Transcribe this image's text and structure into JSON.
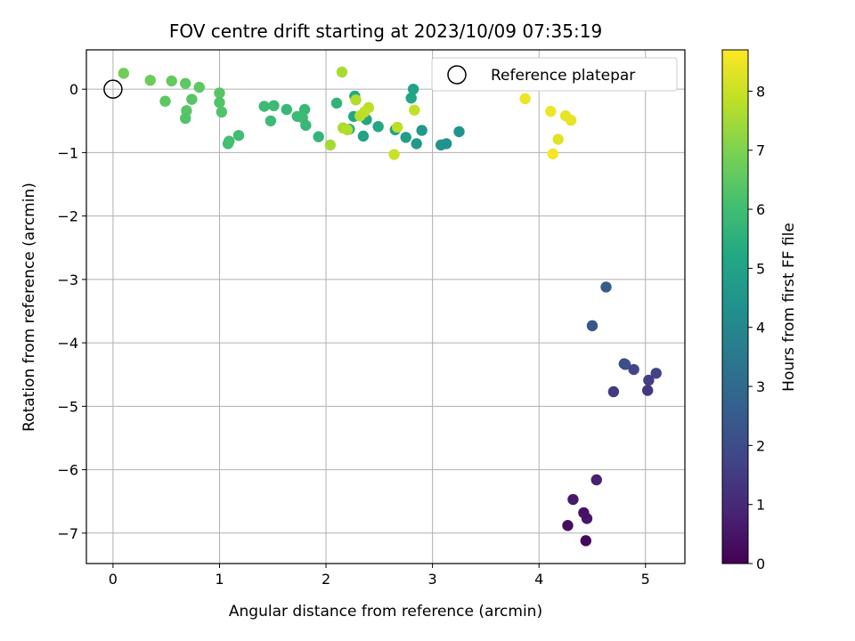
{
  "chart_data": {
    "type": "scatter",
    "title": "FOV centre drift starting at 2023/10/09 07:35:19",
    "xlabel": "Angular distance from reference (arcmin)",
    "ylabel": "Rotation from reference (arcmin)",
    "xlim": [
      -0.25,
      5.37
    ],
    "ylim": [
      -7.48,
      0.62
    ],
    "xticks": [
      0,
      1,
      2,
      3,
      4,
      5
    ],
    "yticks": [
      0,
      -1,
      -2,
      -3,
      -4,
      -5,
      -6,
      -7
    ],
    "xtick_labels": [
      "0",
      "1",
      "2",
      "3",
      "4",
      "5"
    ],
    "ytick_labels": [
      "0",
      "−1",
      "−2",
      "−3",
      "−4",
      "−5",
      "−6",
      "−7"
    ],
    "grid": true,
    "legend": {
      "placement": "upper-right",
      "entries": [
        "Reference platepar"
      ]
    },
    "reference_point": {
      "name": "Reference platepar",
      "x": 0,
      "y": 0
    },
    "colorbar": {
      "label": "Hours from first FF file",
      "colormap": "viridis",
      "range": [
        0,
        8.7
      ],
      "ticks": [
        0,
        1,
        2,
        3,
        4,
        5,
        6,
        7,
        8
      ],
      "tick_labels": [
        "0",
        "1",
        "2",
        "3",
        "4",
        "5",
        "6",
        "7",
        "8"
      ]
    },
    "points": [
      {
        "x": 4.44,
        "y": -7.12,
        "c": 0.2
      },
      {
        "x": 4.27,
        "y": -6.88,
        "c": 0.3
      },
      {
        "x": 4.45,
        "y": -6.77,
        "c": 0.5
      },
      {
        "x": 4.42,
        "y": -6.68,
        "c": 0.4
      },
      {
        "x": 4.32,
        "y": -6.47,
        "c": 0.6
      },
      {
        "x": 4.54,
        "y": -6.16,
        "c": 0.8
      },
      {
        "x": 4.7,
        "y": -4.77,
        "c": 1.5
      },
      {
        "x": 5.02,
        "y": -4.75,
        "c": 1.4
      },
      {
        "x": 5.03,
        "y": -4.59,
        "c": 1.6
      },
      {
        "x": 5.1,
        "y": -4.48,
        "c": 1.7
      },
      {
        "x": 4.89,
        "y": -4.42,
        "c": 1.8
      },
      {
        "x": 4.81,
        "y": -4.34,
        "c": 2.0
      },
      {
        "x": 4.8,
        "y": -4.33,
        "c": 2.1
      },
      {
        "x": 4.5,
        "y": -3.73,
        "c": 2.3
      },
      {
        "x": 4.63,
        "y": -3.12,
        "c": 2.5
      },
      {
        "x": 0.1,
        "y": 0.25,
        "c": 6.8
      },
      {
        "x": 0.35,
        "y": 0.14,
        "c": 6.7
      },
      {
        "x": 0.55,
        "y": 0.13,
        "c": 6.6
      },
      {
        "x": 0.68,
        "y": 0.09,
        "c": 6.5
      },
      {
        "x": 0.81,
        "y": 0.03,
        "c": 6.5
      },
      {
        "x": 1.0,
        "y": -0.06,
        "c": 6.4
      },
      {
        "x": 0.49,
        "y": -0.19,
        "c": 6.5
      },
      {
        "x": 0.74,
        "y": -0.16,
        "c": 6.4
      },
      {
        "x": 1.0,
        "y": -0.21,
        "c": 6.3
      },
      {
        "x": 0.69,
        "y": -0.34,
        "c": 6.4
      },
      {
        "x": 1.02,
        "y": -0.36,
        "c": 6.3
      },
      {
        "x": 0.68,
        "y": -0.46,
        "c": 6.3
      },
      {
        "x": 1.18,
        "y": -0.73,
        "c": 6.0
      },
      {
        "x": 1.09,
        "y": -0.82,
        "c": 6.1
      },
      {
        "x": 1.08,
        "y": -0.86,
        "c": 6.1
      },
      {
        "x": 1.42,
        "y": -0.27,
        "c": 5.9
      },
      {
        "x": 1.51,
        "y": -0.26,
        "c": 5.9
      },
      {
        "x": 1.63,
        "y": -0.32,
        "c": 5.8
      },
      {
        "x": 1.8,
        "y": -0.32,
        "c": 5.8
      },
      {
        "x": 1.73,
        "y": -0.43,
        "c": 5.9
      },
      {
        "x": 1.78,
        "y": -0.45,
        "c": 5.9
      },
      {
        "x": 1.48,
        "y": -0.5,
        "c": 5.9
      },
      {
        "x": 1.81,
        "y": -0.57,
        "c": 5.8
      },
      {
        "x": 1.93,
        "y": -0.75,
        "c": 5.7
      },
      {
        "x": 2.1,
        "y": -0.22,
        "c": 5.6
      },
      {
        "x": 2.27,
        "y": -0.11,
        "c": 5.3
      },
      {
        "x": 2.26,
        "y": -0.43,
        "c": 5.2
      },
      {
        "x": 2.38,
        "y": -0.48,
        "c": 5.1
      },
      {
        "x": 2.22,
        "y": -0.63,
        "c": 5.5
      },
      {
        "x": 2.35,
        "y": -0.74,
        "c": 5.0
      },
      {
        "x": 2.49,
        "y": -0.59,
        "c": 5.2
      },
      {
        "x": 2.82,
        "y": 0.0,
        "c": 5.0
      },
      {
        "x": 2.8,
        "y": -0.14,
        "c": 5.1
      },
      {
        "x": 2.65,
        "y": -0.64,
        "c": 4.9
      },
      {
        "x": 2.75,
        "y": -0.76,
        "c": 4.8
      },
      {
        "x": 2.9,
        "y": -0.65,
        "c": 4.7
      },
      {
        "x": 2.85,
        "y": -0.86,
        "c": 4.6
      },
      {
        "x": 3.08,
        "y": -0.88,
        "c": 4.5
      },
      {
        "x": 3.13,
        "y": -0.86,
        "c": 4.4
      },
      {
        "x": 3.25,
        "y": -0.67,
        "c": 4.5
      },
      {
        "x": 2.15,
        "y": 0.27,
        "c": 7.6
      },
      {
        "x": 2.04,
        "y": -0.88,
        "c": 7.5
      },
      {
        "x": 2.28,
        "y": -0.17,
        "c": 7.7
      },
      {
        "x": 2.4,
        "y": -0.29,
        "c": 7.8
      },
      {
        "x": 2.36,
        "y": -0.36,
        "c": 7.9
      },
      {
        "x": 2.32,
        "y": -0.42,
        "c": 7.8
      },
      {
        "x": 2.16,
        "y": -0.61,
        "c": 7.6
      },
      {
        "x": 2.2,
        "y": -0.64,
        "c": 7.7
      },
      {
        "x": 2.83,
        "y": -0.33,
        "c": 7.9
      },
      {
        "x": 2.67,
        "y": -0.6,
        "c": 7.8
      },
      {
        "x": 2.64,
        "y": -1.03,
        "c": 8.0
      },
      {
        "x": 3.87,
        "y": -0.15,
        "c": 8.5
      },
      {
        "x": 4.11,
        "y": -0.35,
        "c": 8.5
      },
      {
        "x": 4.25,
        "y": -0.42,
        "c": 8.4
      },
      {
        "x": 4.3,
        "y": -0.49,
        "c": 8.4
      },
      {
        "x": 4.18,
        "y": -0.79,
        "c": 8.3
      },
      {
        "x": 4.13,
        "y": -1.02,
        "c": 8.6
      }
    ]
  }
}
